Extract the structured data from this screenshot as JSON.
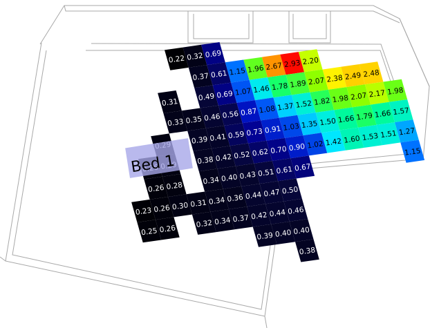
{
  "room_label": "Bed 1",
  "colors": {
    "wall_line": "#a8a8a8",
    "label_box": "#a8a8e8",
    "scale": [
      "#000000",
      "#06063a",
      "#0000b4",
      "#0064ff",
      "#00e8ff",
      "#00ff80",
      "#80ff00",
      "#ffff00",
      "#ffa000",
      "#ff0000"
    ]
  },
  "grid": {
    "rows": [
      [
        null,
        null,
        null,
        null,
        null,
        null,
        null,
        null,
        null,
        null,
        null,
        null,
        "0.22",
        "0.32",
        "0.69",
        null,
        null,
        null,
        null,
        null,
        null,
        null,
        null,
        null,
        null
      ],
      [
        null,
        null,
        null,
        null,
        null,
        null,
        null,
        null,
        null,
        null,
        null,
        null,
        null,
        "0.37",
        "0.61",
        "1.15",
        "1.96",
        "2.67",
        "2.93",
        "2.20",
        null,
        null,
        null,
        null,
        null
      ],
      [
        null,
        null,
        null,
        null,
        null,
        null,
        null,
        null,
        null,
        null,
        null,
        "0.31",
        null,
        "0.49",
        "0.69",
        "1.07",
        "1.46",
        "1.78",
        "1.89",
        "2.07",
        "2.38",
        "2.49",
        "2.48",
        null,
        null
      ],
      [
        null,
        null,
        null,
        null,
        null,
        null,
        null,
        null,
        null,
        null,
        null,
        "0.33",
        "0.35",
        "0.46",
        "0.56",
        "0.87",
        "1.08",
        "1.37",
        "1.52",
        "1.82",
        "1.98",
        "2.07",
        "2.17",
        "1.98",
        null
      ],
      [
        null,
        null,
        null,
        null,
        null,
        null,
        null,
        null,
        null,
        null,
        "0.29",
        null,
        "0.39",
        "0.41",
        "0.59",
        "0.73",
        "0.91",
        "1.03",
        "1.35",
        "1.50",
        "1.66",
        "1.79",
        "1.66",
        "1.57",
        null
      ],
      [
        null,
        null,
        null,
        null,
        null,
        null,
        null,
        null,
        null,
        "0.26",
        "0.29",
        null,
        "0.38",
        "0.42",
        "0.52",
        "0.62",
        "0.70",
        "0.90",
        "1.02",
        "1.42",
        "1.60",
        "1.53",
        "1.51",
        "1.27",
        null
      ],
      [
        null,
        null,
        null,
        null,
        null,
        null,
        null,
        null,
        null,
        "0.26",
        "0.28",
        null,
        "0.34",
        "0.40",
        "0.43",
        "0.51",
        "0.61",
        "0.67",
        null,
        null,
        null,
        null,
        null,
        "1.15",
        null
      ],
      [
        null,
        null,
        null,
        null,
        null,
        null,
        null,
        null,
        "0.23",
        "0.26",
        "0.30",
        "0.31",
        "0.34",
        "0.36",
        "0.44",
        "0.47",
        "0.50",
        null,
        null,
        null,
        null,
        null,
        null,
        null,
        null
      ],
      [
        null,
        null,
        null,
        null,
        null,
        null,
        null,
        null,
        "0.25",
        "0.26",
        null,
        "0.32",
        "0.34",
        "0.37",
        "0.42",
        "0.44",
        "0.46",
        null,
        null,
        null,
        null,
        null,
        null,
        null,
        null
      ],
      [
        null,
        null,
        null,
        null,
        null,
        null,
        null,
        null,
        null,
        null,
        null,
        null,
        null,
        null,
        "0.39",
        "0.40",
        "0.40",
        null,
        null,
        null,
        null,
        null,
        null,
        null,
        null
      ],
      [
        null,
        null,
        null,
        null,
        null,
        null,
        null,
        null,
        null,
        null,
        null,
        null,
        null,
        null,
        null,
        null,
        "0.38",
        null,
        null,
        null,
        null,
        null,
        null,
        null,
        null
      ]
    ]
  }
}
